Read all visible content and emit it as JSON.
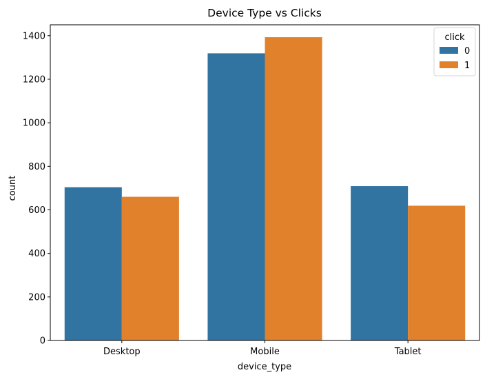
{
  "chart_data": {
    "type": "bar",
    "title": "Device Type vs Clicks",
    "xlabel": "device_type",
    "ylabel": "count",
    "categories": [
      "Desktop",
      "Mobile",
      "Tablet"
    ],
    "series": [
      {
        "name": "0",
        "values": [
          704,
          1319,
          709
        ],
        "color": "#3274a1"
      },
      {
        "name": "1",
        "values": [
          660,
          1393,
          619
        ],
        "color": "#e1812c"
      }
    ],
    "ylim": [
      0,
      1450
    ],
    "yticks": [
      0,
      200,
      400,
      600,
      800,
      1000,
      1200,
      1400
    ],
    "legend": {
      "title": "click",
      "placement": "top-right"
    },
    "grid": false
  }
}
